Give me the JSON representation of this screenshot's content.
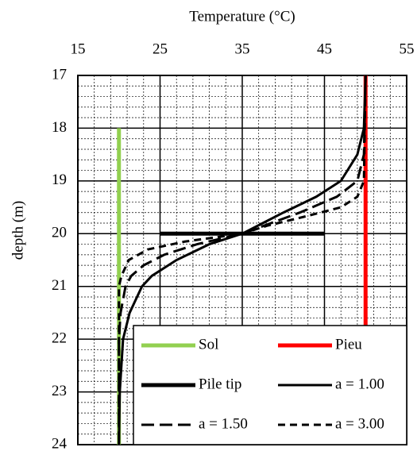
{
  "chart_data": {
    "type": "line",
    "xlabel": "Temperature (°C)",
    "ylabel": "depth (m)",
    "xlim": [
      15,
      55
    ],
    "xticks": [
      15,
      25,
      35,
      45,
      55
    ],
    "ylim": [
      24,
      17
    ],
    "yticks": [
      17,
      18,
      19,
      20,
      21,
      22,
      23,
      24
    ],
    "grid": true,
    "x_axis_position": "top",
    "legend": "lower right",
    "legend_columns": 2,
    "series": [
      {
        "name": "Sol",
        "color": "#92d050",
        "width": 5,
        "dash": "solid",
        "x": [
          20,
          20
        ],
        "y": [
          18,
          24
        ]
      },
      {
        "name": "Pieu",
        "color": "#ff0000",
        "width": 5,
        "dash": "solid",
        "x": [
          50,
          50
        ],
        "y": [
          17,
          24
        ]
      },
      {
        "name": "Pile tip",
        "color": "#000000",
        "width": 5,
        "dash": "solid",
        "x": [
          25,
          45
        ],
        "y": [
          20,
          20
        ]
      },
      {
        "name": "a = 1.00",
        "color": "#000000",
        "width": 3,
        "dash": "solid",
        "x": [
          50,
          49.8,
          49,
          47,
          44,
          40,
          37.5,
          35,
          31,
          27,
          24,
          22.8,
          21.3,
          20.5,
          20.1,
          20
        ],
        "y": [
          17,
          18,
          18.5,
          19,
          19.3,
          19.6,
          19.8,
          20,
          20.2,
          20.5,
          20.8,
          21,
          21.5,
          22,
          23,
          24
        ]
      },
      {
        "name": "a = 1.50",
        "color": "#000000",
        "width": 3,
        "dash": "long",
        "x": [
          50,
          49.8,
          49,
          46.5,
          42,
          38.5,
          35,
          29.5,
          25.5,
          23,
          21.5,
          20.8,
          20.2,
          20,
          20
        ],
        "y": [
          17,
          18.5,
          19,
          19.3,
          19.6,
          19.8,
          20,
          20.2,
          20.4,
          20.6,
          20.8,
          21,
          21.5,
          22,
          24
        ]
      },
      {
        "name": "a = 3.00",
        "color": "#000000",
        "width": 3,
        "dash": "short",
        "x": [
          50,
          49.8,
          49,
          47,
          42,
          38,
          35,
          28,
          23.5,
          21.2,
          20.3,
          20,
          20
        ],
        "y": [
          17,
          19,
          19.3,
          19.5,
          19.7,
          19.85,
          20,
          20.15,
          20.3,
          20.5,
          20.8,
          21,
          24
        ]
      }
    ]
  }
}
